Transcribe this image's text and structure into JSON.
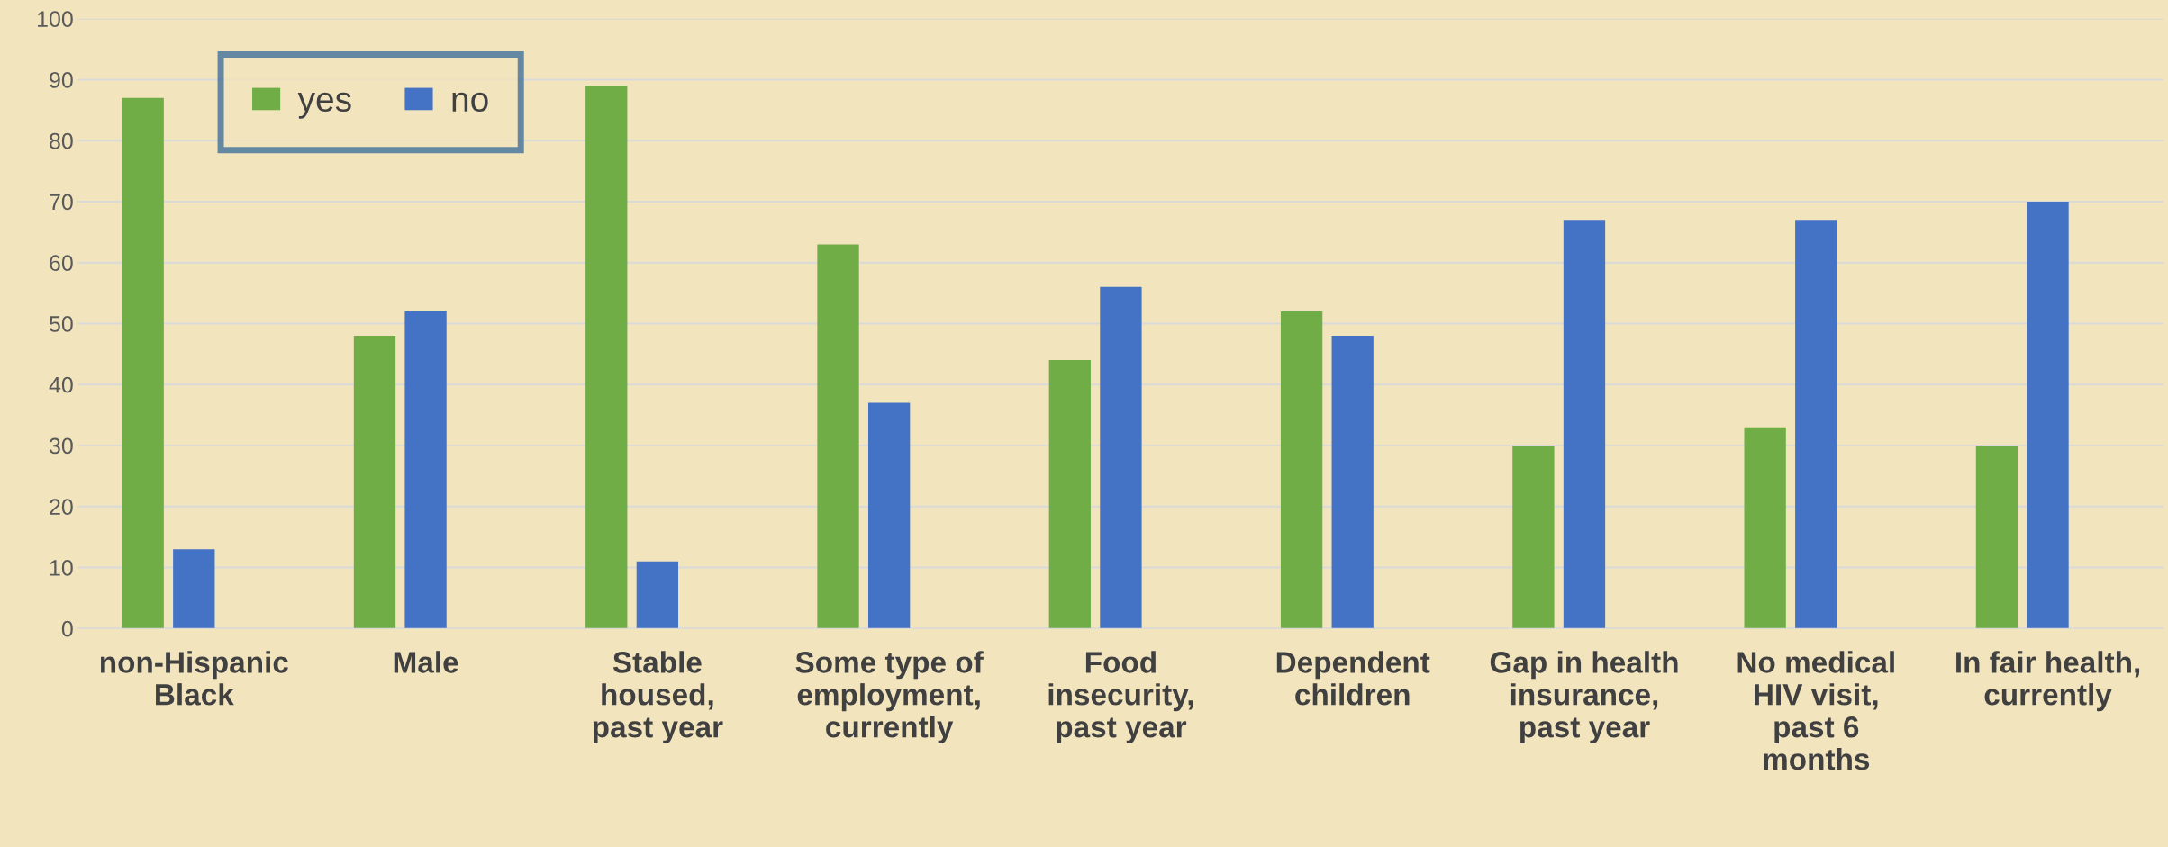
{
  "chart_data": {
    "type": "bar",
    "categories": [
      "non-Hispanic\nBlack",
      "Male",
      "Stable\nhoused,\npast year",
      "Some type of\nemployment,\ncurrently",
      "Food\ninsecurity,\npast year",
      "Dependent\nchildren",
      "Gap in health\ninsurance,\npast year",
      "No medical\nHIV visit,\npast 6\nmonths",
      "In fair health,\ncurrently"
    ],
    "series": [
      {
        "name": "yes",
        "color": "#70ad47",
        "values": [
          87,
          48,
          89,
          63,
          44,
          52,
          30,
          33,
          30
        ]
      },
      {
        "name": "no",
        "color": "#4472c4",
        "values": [
          13,
          52,
          11,
          37,
          56,
          48,
          67,
          67,
          70
        ]
      }
    ],
    "ylim": [
      0,
      100
    ],
    "yticks": [
      0,
      10,
      20,
      30,
      40,
      50,
      60,
      70,
      80,
      90,
      100
    ],
    "grid": "y",
    "legend": "top left"
  }
}
